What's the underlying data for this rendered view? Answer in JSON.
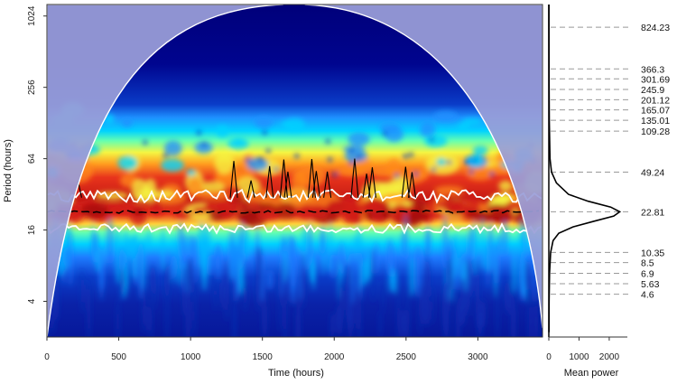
{
  "chart_data": [
    {
      "type": "heatmap",
      "title": "",
      "xlabel": "Time (hours)",
      "ylabel": "Period (hours)",
      "x_ticks": [
        0,
        500,
        1000,
        1500,
        2000,
        2500,
        3000
      ],
      "y_ticks": [
        4,
        16,
        64,
        256,
        1024
      ],
      "y_scale": "log2",
      "xlim": [
        0,
        3450
      ],
      "ylim": [
        2,
        1280
      ],
      "ridge_period": 22.81,
      "high_power_band": [
        15,
        36
      ],
      "colormap": [
        "#00007f",
        "#0a3cc8",
        "#1e90ff",
        "#00d2ff",
        "#66ffb0",
        "#f5f542",
        "#ff9c1f",
        "#e8341c",
        "#a50f0f"
      ],
      "cone_color": "#9a9ed8"
    },
    {
      "type": "line",
      "title": "",
      "xlabel": "Mean power",
      "ylabel": "",
      "x_ticks": [
        0,
        1000,
        2000
      ],
      "xlim": [
        0,
        2600
      ],
      "y_scale": "log2",
      "series": [
        {
          "period": [
            2.2,
            4,
            6.9,
            10.35,
            13,
            15,
            17,
            19,
            21,
            22.81,
            25,
            28,
            32,
            40,
            49.24,
            64,
            135,
            256,
            1024,
            1280
          ],
          "power": [
            5,
            10,
            25,
            60,
            140,
            330,
            800,
            1500,
            2150,
            2350,
            2050,
            1300,
            650,
            250,
            90,
            40,
            15,
            8,
            4,
            3
          ]
        }
      ],
      "dashed_periods": [
        4.6,
        5.63,
        6.9,
        8.5,
        10.35,
        22.81,
        49.24,
        109.28,
        135.01,
        165.07,
        201.12,
        245.9,
        301.69,
        366.3,
        824.23
      ],
      "period_labels": [
        "4.6",
        "5.63",
        "6.9",
        "8.5",
        "10.35",
        "22.81",
        "49.24",
        "109.28",
        "135.01",
        "165.07",
        "201.12",
        "245.9",
        "301.69",
        "366.3",
        "824.23"
      ]
    }
  ]
}
